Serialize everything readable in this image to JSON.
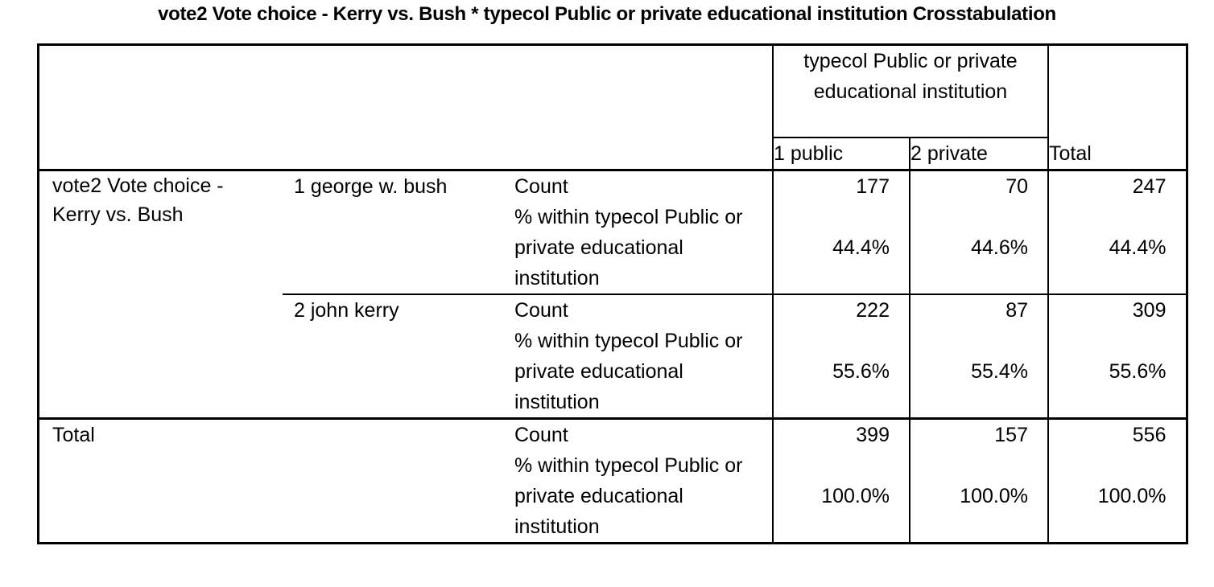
{
  "title": "vote2  Vote choice - Kerry vs. Bush * typecol  Public or private educational institution Crosstabulation",
  "header": {
    "column_group": "typecol  Public or private educational institution",
    "col1": "1  public",
    "col2": "2  private",
    "total": "Total"
  },
  "row_variable": "vote2  Vote choice - Kerry vs. Bush",
  "rows": [
    {
      "category": "1  george w. bush",
      "count_label": "Count",
      "count": [
        "177",
        "70",
        "247"
      ],
      "pct_label": "% within typecol Public or private educational institution",
      "pct": [
        "44.4%",
        "44.6%",
        "44.4%"
      ]
    },
    {
      "category": "2  john kerry",
      "count_label": "Count",
      "count": [
        "222",
        "87",
        "309"
      ],
      "pct_label": "% within typecol Public or private educational institution",
      "pct": [
        "55.6%",
        "55.4%",
        "55.6%"
      ]
    }
  ],
  "total_row": {
    "label": "Total",
    "count_label": "Count",
    "count": [
      "399",
      "157",
      "556"
    ],
    "pct_label": "% within typecol Public or private educational institution",
    "pct": [
      "100.0%",
      "100.0%",
      "100.0%"
    ]
  }
}
